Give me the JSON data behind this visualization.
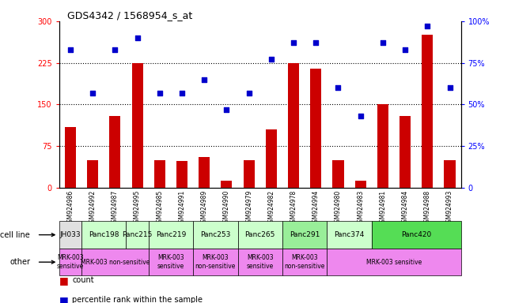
{
  "title": "GDS4342 / 1568954_s_at",
  "samples": [
    "GSM924986",
    "GSM924992",
    "GSM924987",
    "GSM924995",
    "GSM924985",
    "GSM924991",
    "GSM924989",
    "GSM924990",
    "GSM924979",
    "GSM924982",
    "GSM924978",
    "GSM924994",
    "GSM924980",
    "GSM924983",
    "GSM924981",
    "GSM924984",
    "GSM924988",
    "GSM924993"
  ],
  "counts": [
    110,
    50,
    130,
    225,
    50,
    48,
    55,
    13,
    50,
    105,
    225,
    215,
    50,
    13,
    150,
    130,
    275,
    50
  ],
  "percentiles": [
    83,
    57,
    83,
    90,
    57,
    57,
    65,
    47,
    57,
    77,
    87,
    87,
    60,
    43,
    87,
    83,
    97,
    60
  ],
  "bar_color": "#cc0000",
  "dot_color": "#0000cc",
  "ylim_left": [
    0,
    300
  ],
  "ylim_right": [
    0,
    100
  ],
  "yticks_left": [
    0,
    75,
    150,
    225,
    300
  ],
  "yticks_right": [
    0,
    25,
    50,
    75,
    100
  ],
  "grid_values": [
    75,
    150,
    225
  ],
  "cell_groups": [
    {
      "label": "JH033",
      "start": 0,
      "end": 0,
      "color": "#e0e0e0"
    },
    {
      "label": "Panc198",
      "start": 1,
      "end": 2,
      "color": "#ccffcc"
    },
    {
      "label": "Panc215",
      "start": 3,
      "end": 3,
      "color": "#ccffcc"
    },
    {
      "label": "Panc219",
      "start": 4,
      "end": 5,
      "color": "#ccffcc"
    },
    {
      "label": "Panc253",
      "start": 6,
      "end": 7,
      "color": "#ccffcc"
    },
    {
      "label": "Panc265",
      "start": 8,
      "end": 9,
      "color": "#ccffcc"
    },
    {
      "label": "Panc291",
      "start": 10,
      "end": 11,
      "color": "#99ee99"
    },
    {
      "label": "Panc374",
      "start": 12,
      "end": 13,
      "color": "#ccffcc"
    },
    {
      "label": "Panc420",
      "start": 14,
      "end": 17,
      "color": "#55dd55"
    }
  ],
  "other_groups": [
    {
      "label": "MRK-003\nsensitive",
      "start": 0,
      "end": 0,
      "color": "#ee88ee"
    },
    {
      "label": "MRK-003 non-sensitive",
      "start": 1,
      "end": 3,
      "color": "#ee88ee"
    },
    {
      "label": "MRK-003\nsensitive",
      "start": 4,
      "end": 5,
      "color": "#ee88ee"
    },
    {
      "label": "MRK-003\nnon-sensitive",
      "start": 6,
      "end": 7,
      "color": "#ee88ee"
    },
    {
      "label": "MRK-003\nsensitive",
      "start": 8,
      "end": 9,
      "color": "#ee88ee"
    },
    {
      "label": "MRK-003\nnon-sensitive",
      "start": 10,
      "end": 11,
      "color": "#ee88ee"
    },
    {
      "label": "MRK-003 sensitive",
      "start": 12,
      "end": 17,
      "color": "#ee88ee"
    }
  ]
}
